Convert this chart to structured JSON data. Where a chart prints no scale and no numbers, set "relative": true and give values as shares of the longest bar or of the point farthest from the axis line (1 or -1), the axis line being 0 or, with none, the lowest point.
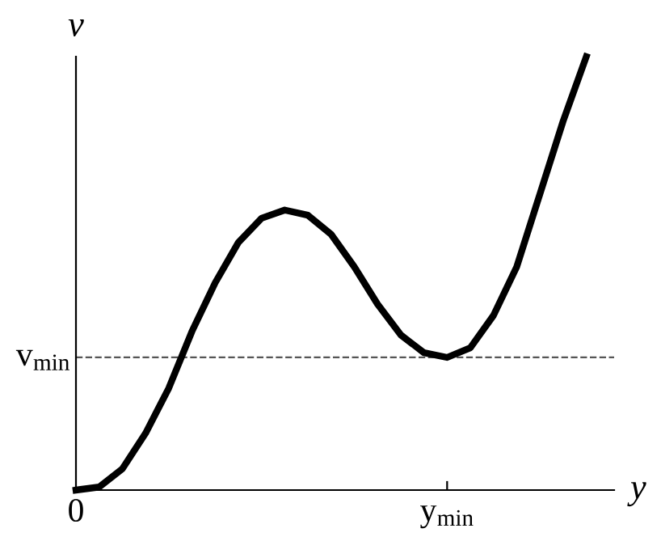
{
  "chart_data": {
    "type": "line",
    "relative": true,
    "xlabel": "y",
    "ylabel": "v",
    "color": "#000000",
    "line_style": "solid",
    "marker": "none",
    "grid": false,
    "legend": false,
    "values": [
      0,
      0.007,
      0.049,
      0.131,
      0.235,
      0.366,
      0.478,
      0.571,
      0.627,
      0.646,
      0.634,
      0.59,
      0.515,
      0.429,
      0.358,
      0.317,
      0.306,
      0.328,
      0.403,
      0.515,
      0.683,
      0.851,
      1
    ],
    "categories": [
      "0",
      null,
      null,
      null,
      null,
      null,
      null,
      null,
      null,
      null,
      null,
      null,
      null,
      null,
      null,
      null,
      "y$_{min}$",
      null,
      null,
      null,
      null,
      null,
      null
    ],
    "ref_lines": [
      {
        "axis": "y",
        "value": 0.306,
        "label": "v$_{min}$",
        "color": "#555555",
        "line_style": "dashed"
      }
    ]
  }
}
